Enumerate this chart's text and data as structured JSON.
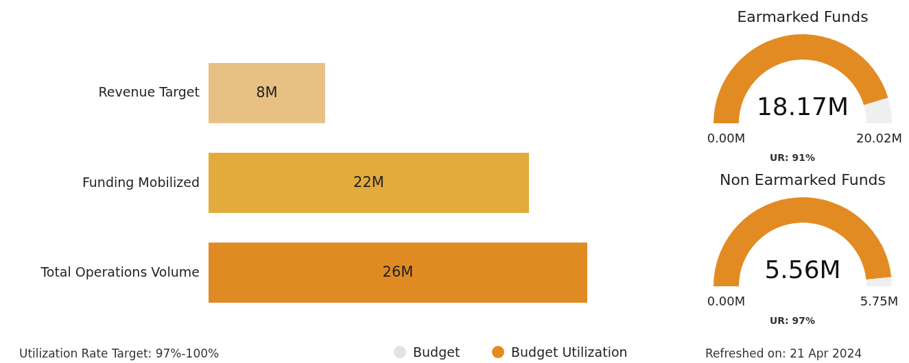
{
  "chart_data": [
    {
      "type": "bar",
      "orientation": "horizontal",
      "categories": [
        "Revenue Target",
        "Funding Mobilized",
        "Total Operations Volume"
      ],
      "values": [
        8,
        22,
        26
      ],
      "colors": [
        "#e8c083",
        "#e3aa3c",
        "#e08a24"
      ],
      "value_labels": [
        "8M",
        "22M",
        "26M"
      ],
      "annotations": [
        "Utilization Rate Target:  97%-100%",
        "Refreshed on:  21 Apr 2024"
      ]
    },
    {
      "type": "donut",
      "title": "Earmarked Funds",
      "categories": [
        "Budget Utilization",
        "Budget"
      ],
      "values": [
        18.17,
        1.85
      ],
      "colors": [
        "#e38b23",
        "#efefef"
      ],
      "value_labels": [
        "18.17M",
        null
      ],
      "annotations": [
        "0.00M",
        "20.02M",
        "UR: 91%"
      ],
      "legend": "bottom"
    },
    {
      "type": "donut",
      "title": "Non Earmarked Funds",
      "values": [
        5.56,
        0.19
      ],
      "colors": [
        "#e38b23",
        "#efefef"
      ],
      "value_labels": [
        "5.56M",
        null
      ],
      "annotations": [
        "0.00M",
        "5.75M",
        "UR: 97%"
      ]
    }
  ]
}
